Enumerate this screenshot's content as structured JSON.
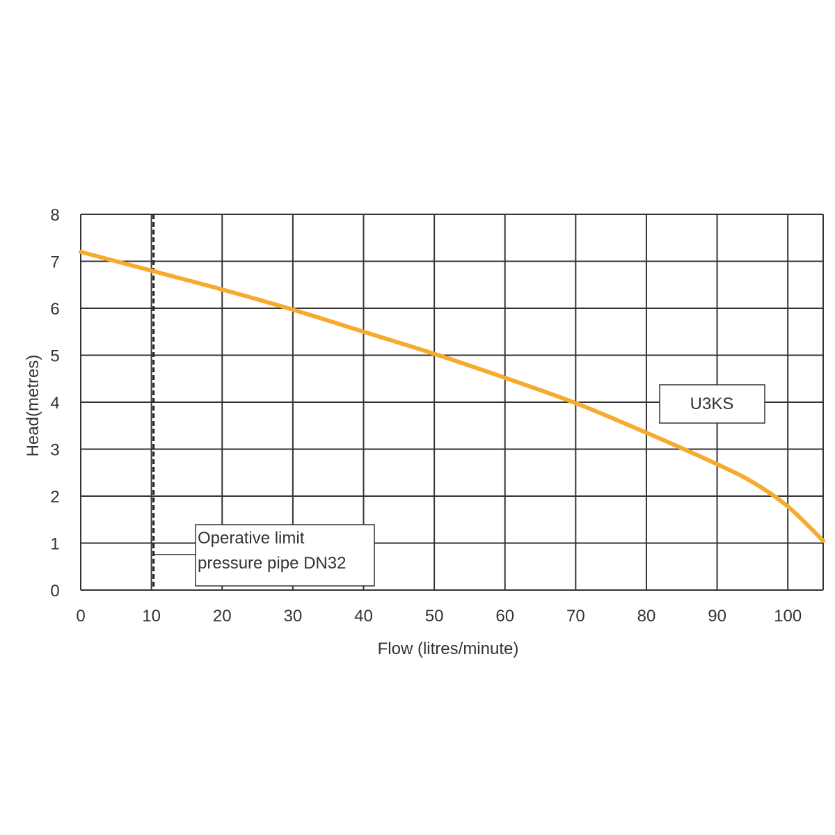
{
  "chart_data": {
    "type": "line",
    "xlabel": "Flow (litres/minute)",
    "ylabel": "Head(metres)",
    "xlim": [
      0,
      105
    ],
    "ylim": [
      0,
      8
    ],
    "x_ticks": [
      0,
      10,
      20,
      30,
      40,
      50,
      60,
      70,
      80,
      90,
      100
    ],
    "y_ticks": [
      0,
      1,
      2,
      3,
      4,
      5,
      6,
      7,
      8
    ],
    "x_tick_labels": [
      "0",
      "10",
      "20",
      "30",
      "40",
      "50",
      "60",
      "70",
      "80",
      "90",
      "100"
    ],
    "y_tick_labels": [
      "0",
      "1",
      "2",
      "3",
      "4",
      "5",
      "6",
      "7",
      "8"
    ],
    "grid": true,
    "series": [
      {
        "name": "U3KS",
        "color": "#f5ac2e",
        "x": [
          0,
          10,
          20,
          30,
          40,
          50,
          60,
          70,
          80,
          90,
          95,
          100,
          105
        ],
        "y": [
          7.2,
          6.8,
          6.4,
          5.97,
          5.5,
          5.03,
          4.52,
          3.98,
          3.35,
          2.68,
          2.3,
          1.78,
          1.05
        ]
      }
    ],
    "operative_limit": {
      "x": 10.3,
      "label_line1": "Operative limit",
      "label_line2": "pressure pipe DN32"
    }
  }
}
